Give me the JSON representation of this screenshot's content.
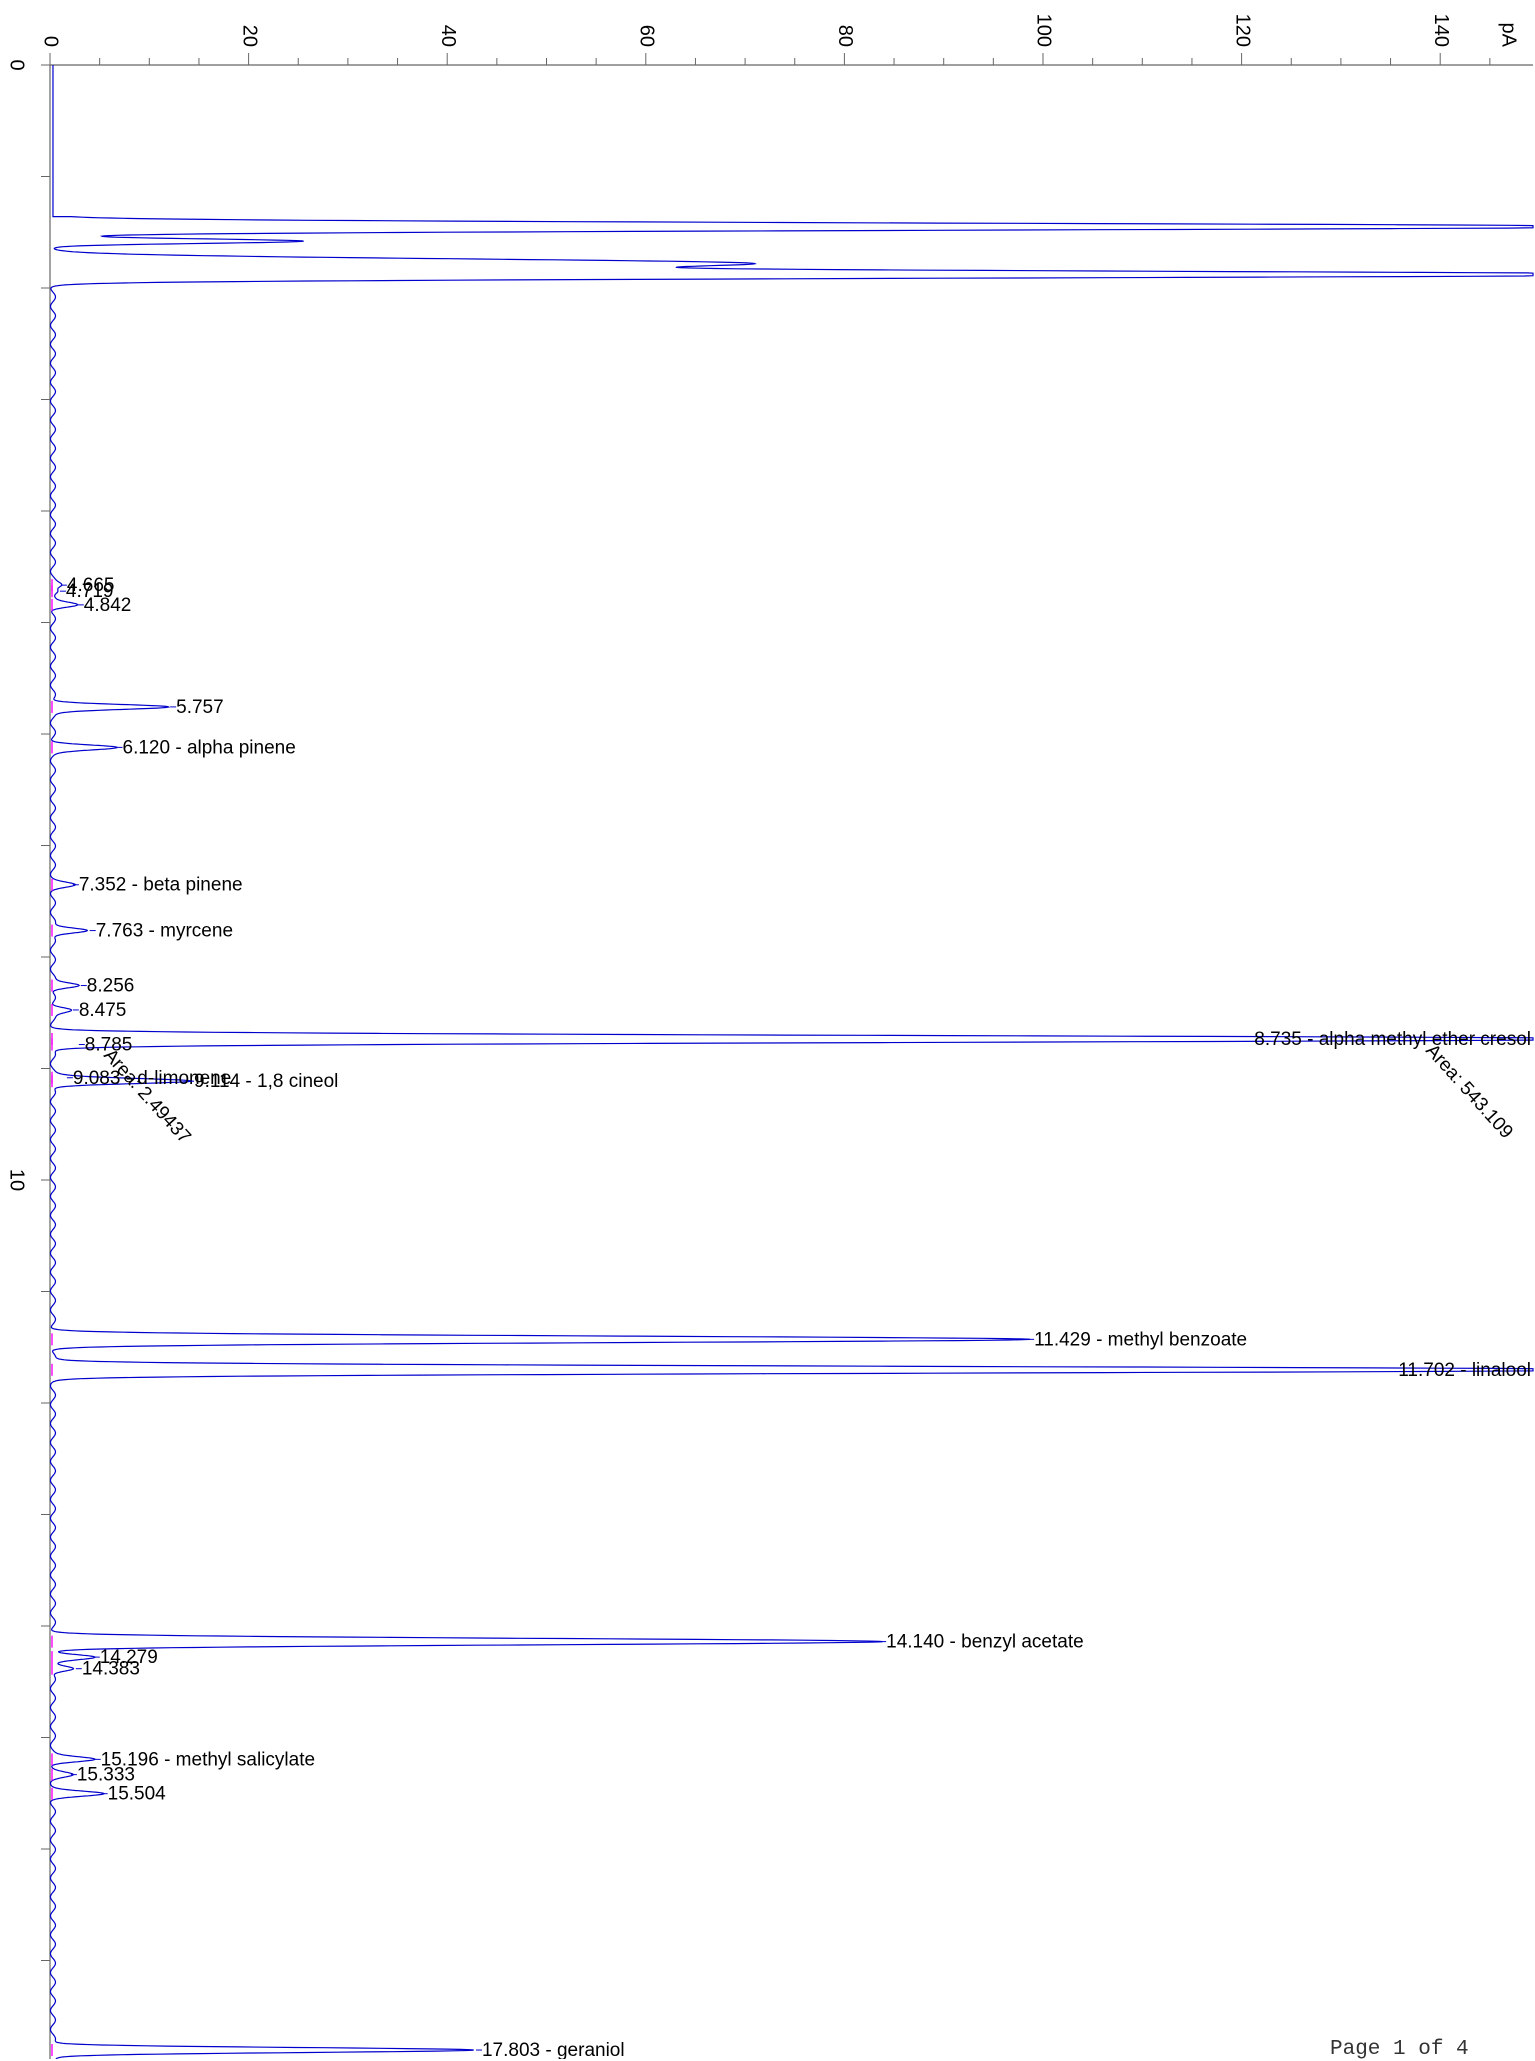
{
  "footer": {
    "page_label": "Page 1 of 4"
  },
  "chart_data": {
    "type": "line",
    "title": "",
    "orientation": "rotated: retention time runs top-to-bottom, signal runs left-to-right",
    "x": {
      "label": "",
      "range": [
        0,
        18.4
      ],
      "major_ticks": [
        0,
        10
      ],
      "minor_step": 1
    },
    "y": {
      "label": "pA",
      "range": [
        -3.5,
        150
      ],
      "major_ticks": [
        0,
        20,
        40,
        60,
        80,
        100,
        120,
        140
      ],
      "minor_step": 5
    },
    "colors": {
      "trace": "#0000cc",
      "baseline_marks": "#ff00ff",
      "axis": "#666666",
      "label": "#000000"
    },
    "baseline_pA": 0.3,
    "solvent_front": [
      {
        "time": 1.45,
        "height": 160,
        "width": 0.03
      },
      {
        "time": 1.58,
        "height": 25,
        "width": 0.02
      },
      {
        "time": 1.78,
        "height": 70,
        "width": 0.04
      },
      {
        "time": 1.88,
        "height": 160,
        "width": 0.03
      }
    ],
    "peaks": [
      {
        "time": 4.665,
        "height": 0.8,
        "label": "4.665"
      },
      {
        "time": 4.719,
        "height": 0.7,
        "label": "4.719"
      },
      {
        "time": 4.842,
        "height": 2.5,
        "label": "4.842"
      },
      {
        "time": 5.757,
        "height": 11.8,
        "label": "5.757"
      },
      {
        "time": 6.12,
        "height": 6.4,
        "label": "6.120 -  alpha pinene"
      },
      {
        "time": 7.352,
        "height": 2.0,
        "label": "7.352 -  beta pinene"
      },
      {
        "time": 7.763,
        "height": 3.7,
        "label": "7.763 -  myrcene"
      },
      {
        "time": 8.256,
        "height": 2.8,
        "label": "8.256"
      },
      {
        "time": 8.475,
        "height": 2.0,
        "label": "8.475"
      },
      {
        "time": 8.735,
        "height": 160,
        "label": "8.735 -  alpha methyl ether cresol",
        "area_label": "Area: 543.109"
      },
      {
        "time": 8.785,
        "height": 2.6,
        "label": "8.785"
      },
      {
        "time": 9.083,
        "height": 1.4,
        "label": "9.083 -  d-limonene",
        "area_label": "Area: 2.49437"
      },
      {
        "time": 9.114,
        "height": 13.6,
        "label": "9.114 -  1,8 cineol"
      },
      {
        "time": 11.429,
        "height": 98.2,
        "label": "11.429 -  methyl benzoate"
      },
      {
        "time": 11.702,
        "height": 160,
        "label": "11.702 -  linalool"
      },
      {
        "time": 14.14,
        "height": 83.3,
        "label": "14.140 -  benzyl acetate"
      },
      {
        "time": 14.279,
        "height": 4.1,
        "label": "14.279"
      },
      {
        "time": 14.383,
        "height": 2.3,
        "label": "14.383"
      },
      {
        "time": 15.196,
        "height": 4.2,
        "label": "15.196 -  methyl salicylate"
      },
      {
        "time": 15.333,
        "height": 1.8,
        "label": "15.333"
      },
      {
        "time": 15.504,
        "height": 4.9,
        "label": "15.504"
      },
      {
        "time": 17.803,
        "height": 42.6,
        "label": "17.803 -  geraniol"
      }
    ]
  }
}
